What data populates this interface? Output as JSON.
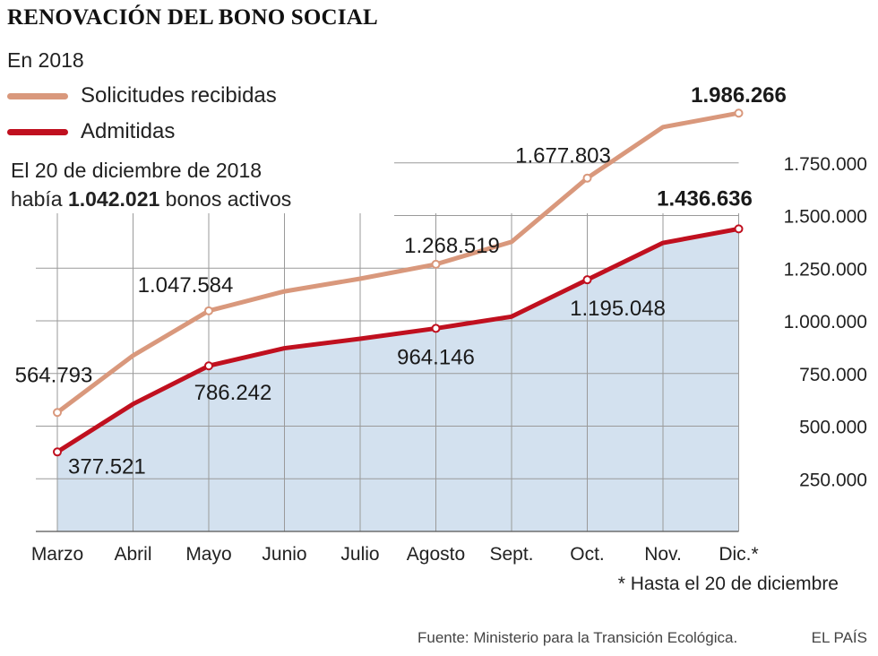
{
  "title": "RENOVACIÓN DEL BONO SOCIAL",
  "subtitle": "En 2018",
  "note": {
    "line1": "El 20 de diciembre de 2018",
    "line2_prefix": "había ",
    "line2_bold": "1.042.021",
    "line2_suffix": " bonos activos"
  },
  "footnote": "* Hasta el 20 de diciembre",
  "source": "Fuente: Ministerio para la Transición Ecológica.",
  "brand": "EL PAÍS",
  "colors": {
    "solicitudes": "#d9987c",
    "admitidas": "#c0101f",
    "area_fill": "#d3e1ef",
    "grid": "#9a9a9a"
  },
  "chart_data": {
    "type": "line",
    "categories": [
      "Marzo",
      "Abril",
      "Mayo",
      "Junio",
      "Julio",
      "Agosto",
      "Sept.",
      "Oct.",
      "Nov.",
      "Dic.*"
    ],
    "ylim": [
      0,
      2000000
    ],
    "yticks": [
      250000,
      500000,
      750000,
      1000000,
      1250000,
      1500000,
      1750000
    ],
    "ytick_labels": [
      "250.000",
      "500.000",
      "750.000",
      "1.000.000",
      "1.250.000",
      "1.500.000",
      "1.750.000"
    ],
    "grid": true,
    "legend": "top-left",
    "series": [
      {
        "name": "Solicitudes recibidas",
        "values": [
          564793,
          835000,
          1047584,
          1140000,
          1200000,
          1268519,
          1375000,
          1677803,
          1920000,
          1986266
        ],
        "labels": [
          {
            "index": 0,
            "text": "564.793",
            "bold": false
          },
          {
            "index": 2,
            "text": "1.047.584",
            "bold": false
          },
          {
            "index": 5,
            "text": "1.268.519",
            "bold": false
          },
          {
            "index": 7,
            "text": "1.677.803",
            "bold": false
          },
          {
            "index": 9,
            "text": "1.986.266",
            "bold": true
          }
        ]
      },
      {
        "name": "Admitidas",
        "values": [
          377521,
          605000,
          786242,
          870000,
          915000,
          964146,
          1020000,
          1195048,
          1370000,
          1436636
        ],
        "labels": [
          {
            "index": 0,
            "text": "377.521",
            "bold": false
          },
          {
            "index": 2,
            "text": "786.242",
            "bold": false
          },
          {
            "index": 5,
            "text": "964.146",
            "bold": false
          },
          {
            "index": 7,
            "text": "1.195.048",
            "bold": false
          },
          {
            "index": 9,
            "text": "1.436.636",
            "bold": true
          }
        ]
      }
    ]
  }
}
